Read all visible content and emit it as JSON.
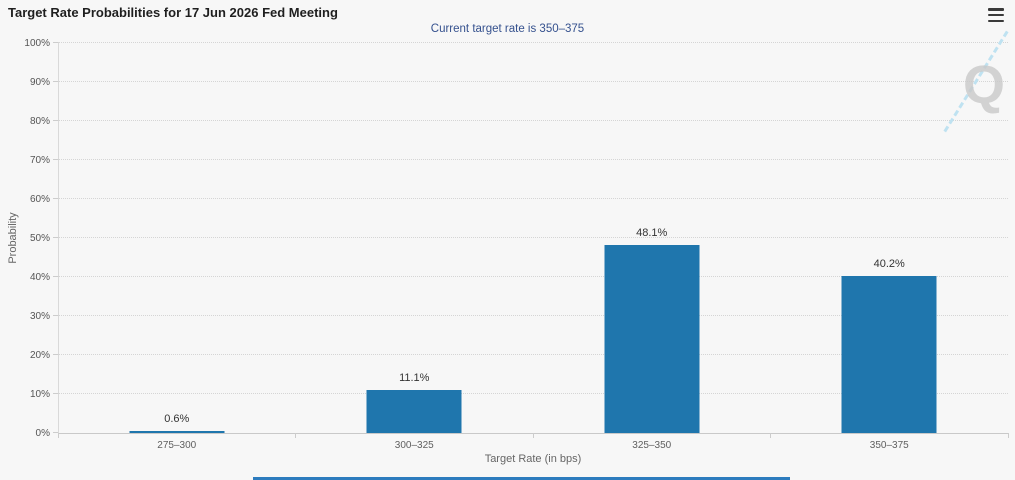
{
  "controls": {
    "export_menu_icon": "hamburger-menu"
  },
  "watermark": {
    "letter": "Q"
  },
  "chart_data": {
    "type": "bar",
    "title": "Target Rate Probabilities for 17 Jun 2026 Fed Meeting",
    "subtitle": "Current target rate is 350–375",
    "categories": [
      "275–300",
      "300–325",
      "325–350",
      "350–375"
    ],
    "values": [
      0.6,
      11.1,
      48.1,
      40.2
    ],
    "data_labels": [
      "0.6%",
      "11.1%",
      "48.1%",
      "40.2%"
    ],
    "xlabel": "Target Rate (in bps)",
    "ylabel": "Probability",
    "ylim": [
      0,
      100
    ],
    "yticks": [
      "0%",
      "10%",
      "20%",
      "30%",
      "40%",
      "50%",
      "60%",
      "70%",
      "80%",
      "90%",
      "100%"
    ],
    "grid": "horizontal-dotted",
    "legend": "none",
    "bar_color": "#1f76ad",
    "subtitle_color": "#35518e",
    "scrollbar_color": "#2d7cbe",
    "background_color": "#f7f7f7"
  }
}
